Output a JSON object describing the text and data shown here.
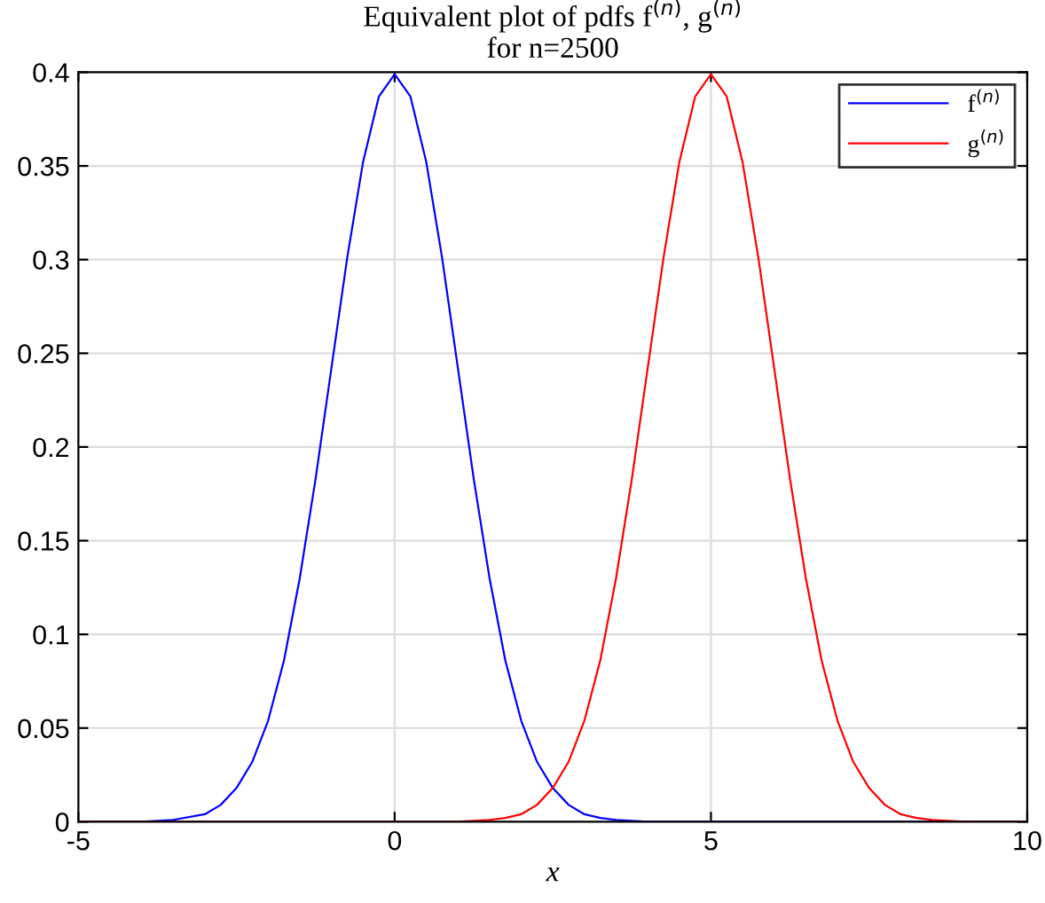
{
  "chart_data": {
    "type": "line",
    "title": "Equivalent plot of pdfs f$^{(n)}$, g$^{(n)}$\nfor n=2500",
    "xlabel": "x",
    "series": [
      {
        "name": "f$^{(n)}$",
        "color": "#0000ff",
        "x": [
          -5,
          -4,
          -3.5,
          -3,
          -2.75,
          -2.5,
          -2.25,
          -2,
          -1.75,
          -1.5,
          -1.25,
          -1,
          -0.75,
          -0.5,
          -0.25,
          0,
          0.25,
          0.5,
          0.75,
          1,
          1.25,
          1.5,
          1.75,
          2,
          2.25,
          2.5,
          2.75,
          3,
          3.25,
          3.5,
          4,
          10
        ],
        "values": [
          0,
          0,
          0.001,
          0.004,
          0.009,
          0.018,
          0.032,
          0.054,
          0.086,
          0.13,
          0.183,
          0.242,
          0.301,
          0.352,
          0.387,
          0.399,
          0.387,
          0.352,
          0.301,
          0.242,
          0.183,
          0.13,
          0.086,
          0.054,
          0.032,
          0.018,
          0.009,
          0.004,
          0.002,
          0.001,
          0,
          0
        ]
      },
      {
        "name": "g$^{(n)}$",
        "color": "#ff0000",
        "x": [
          -5,
          1,
          1.5,
          1.75,
          2,
          2.25,
          2.5,
          2.75,
          3,
          3.25,
          3.5,
          3.75,
          4,
          4.25,
          4.5,
          4.75,
          5,
          5.25,
          5.5,
          5.75,
          6,
          6.25,
          6.5,
          6.75,
          7,
          7.25,
          7.5,
          7.75,
          8,
          8.25,
          8.5,
          9,
          10
        ],
        "values": [
          0,
          0,
          0.001,
          0.002,
          0.004,
          0.009,
          0.018,
          0.032,
          0.054,
          0.086,
          0.13,
          0.183,
          0.242,
          0.301,
          0.352,
          0.387,
          0.399,
          0.387,
          0.352,
          0.301,
          0.242,
          0.183,
          0.13,
          0.086,
          0.054,
          0.032,
          0.018,
          0.009,
          0.004,
          0.002,
          0.001,
          0,
          0
        ]
      }
    ],
    "xlim": [
      -5,
      10
    ],
    "xticks": [
      -5,
      0,
      5,
      10
    ],
    "ylim": [
      0,
      0.4
    ],
    "yticks": [
      0,
      0.05,
      0.1,
      0.15,
      0.2,
      0.25,
      0.3,
      0.35,
      0.4
    ],
    "grid": true,
    "legend": "top right",
    "marker": "none",
    "line_style": "solid"
  }
}
